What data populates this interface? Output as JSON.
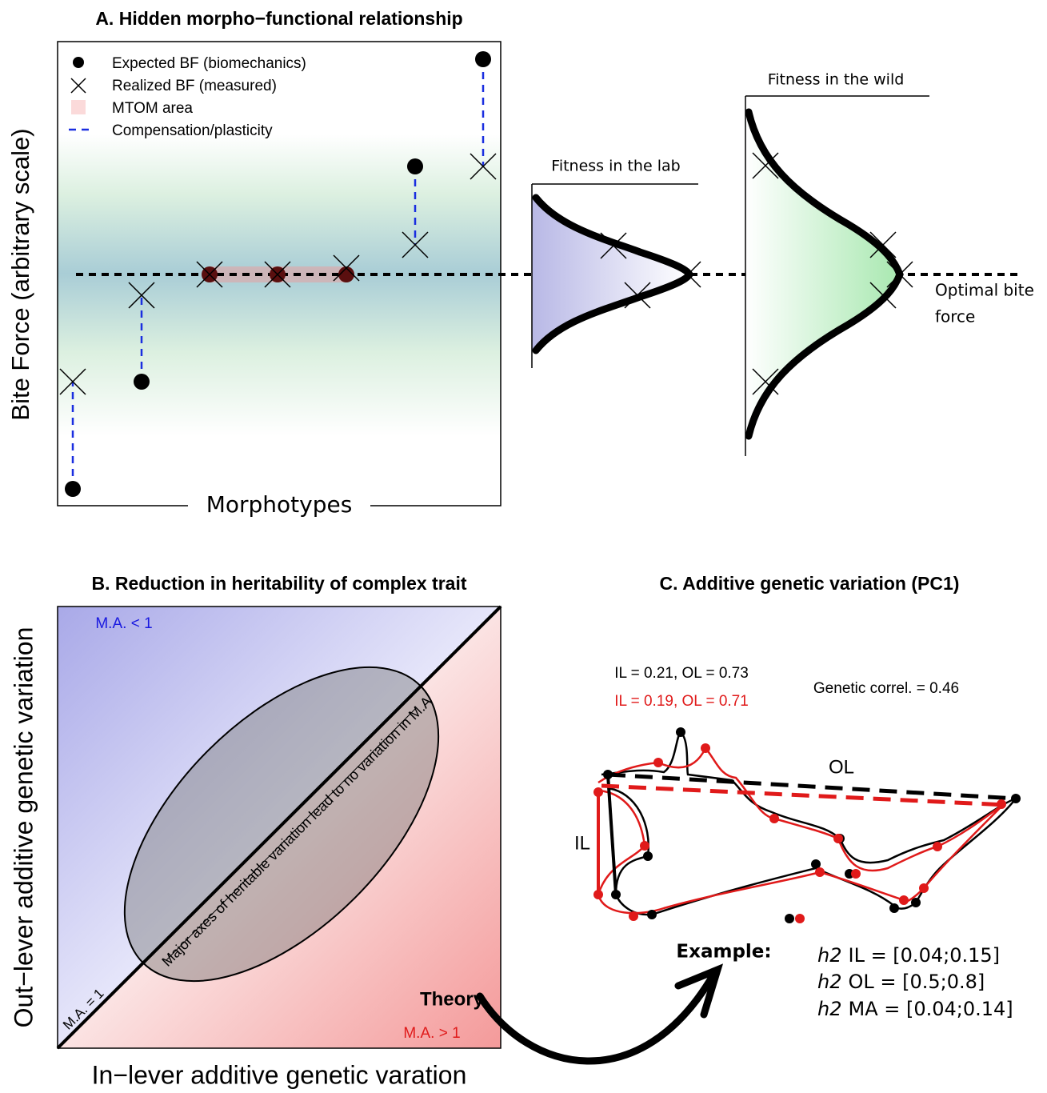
{
  "panel_a": {
    "title": "A. Hidden morpho−functional relationship",
    "y_label": "Bite Force (arbitrary scale)",
    "x_label": "Morphotypes",
    "legend": [
      "Expected BF (biomechanics)",
      "Realized BF (measured)",
      "MTOM area",
      "Compensation/plasticity"
    ],
    "lab_label": "Fitness in the lab",
    "wild_label": "Fitness in the wild",
    "optimal_label": [
      "Optimal bite",
      "force"
    ]
  },
  "panel_b": {
    "title": "B. Reduction in heritability of complex trait",
    "y_label": "Out−lever additive genetic variation",
    "x_label": "In−lever additive genetic varation",
    "upper_label": "M.A. < 1",
    "diagonal_label": "M.A. = 1",
    "lower_label": "M.A. > 1",
    "theory_label": "Theory",
    "axis_note": "Major axes of heritable variation lead to no variation in M.A"
  },
  "panel_c": {
    "title": "C. Additive genetic variation (PC1)",
    "estimates": [
      "IL = 0.21, OL = 0.73",
      "IL = 0.19, OL = 0.71"
    ],
    "correlation": "Genetic correl. = 0.46",
    "ol_label": "OL",
    "il_label": "IL",
    "example_label": "Example:",
    "heritability": [
      {
        "symbol": "h2",
        "text": "IL = [0.04;0.15]"
      },
      {
        "symbol": "h2",
        "text": "OL = [0.5;0.8]"
      },
      {
        "symbol": "h2",
        "text": "MA = [0.04;0.14]"
      }
    ]
  }
}
